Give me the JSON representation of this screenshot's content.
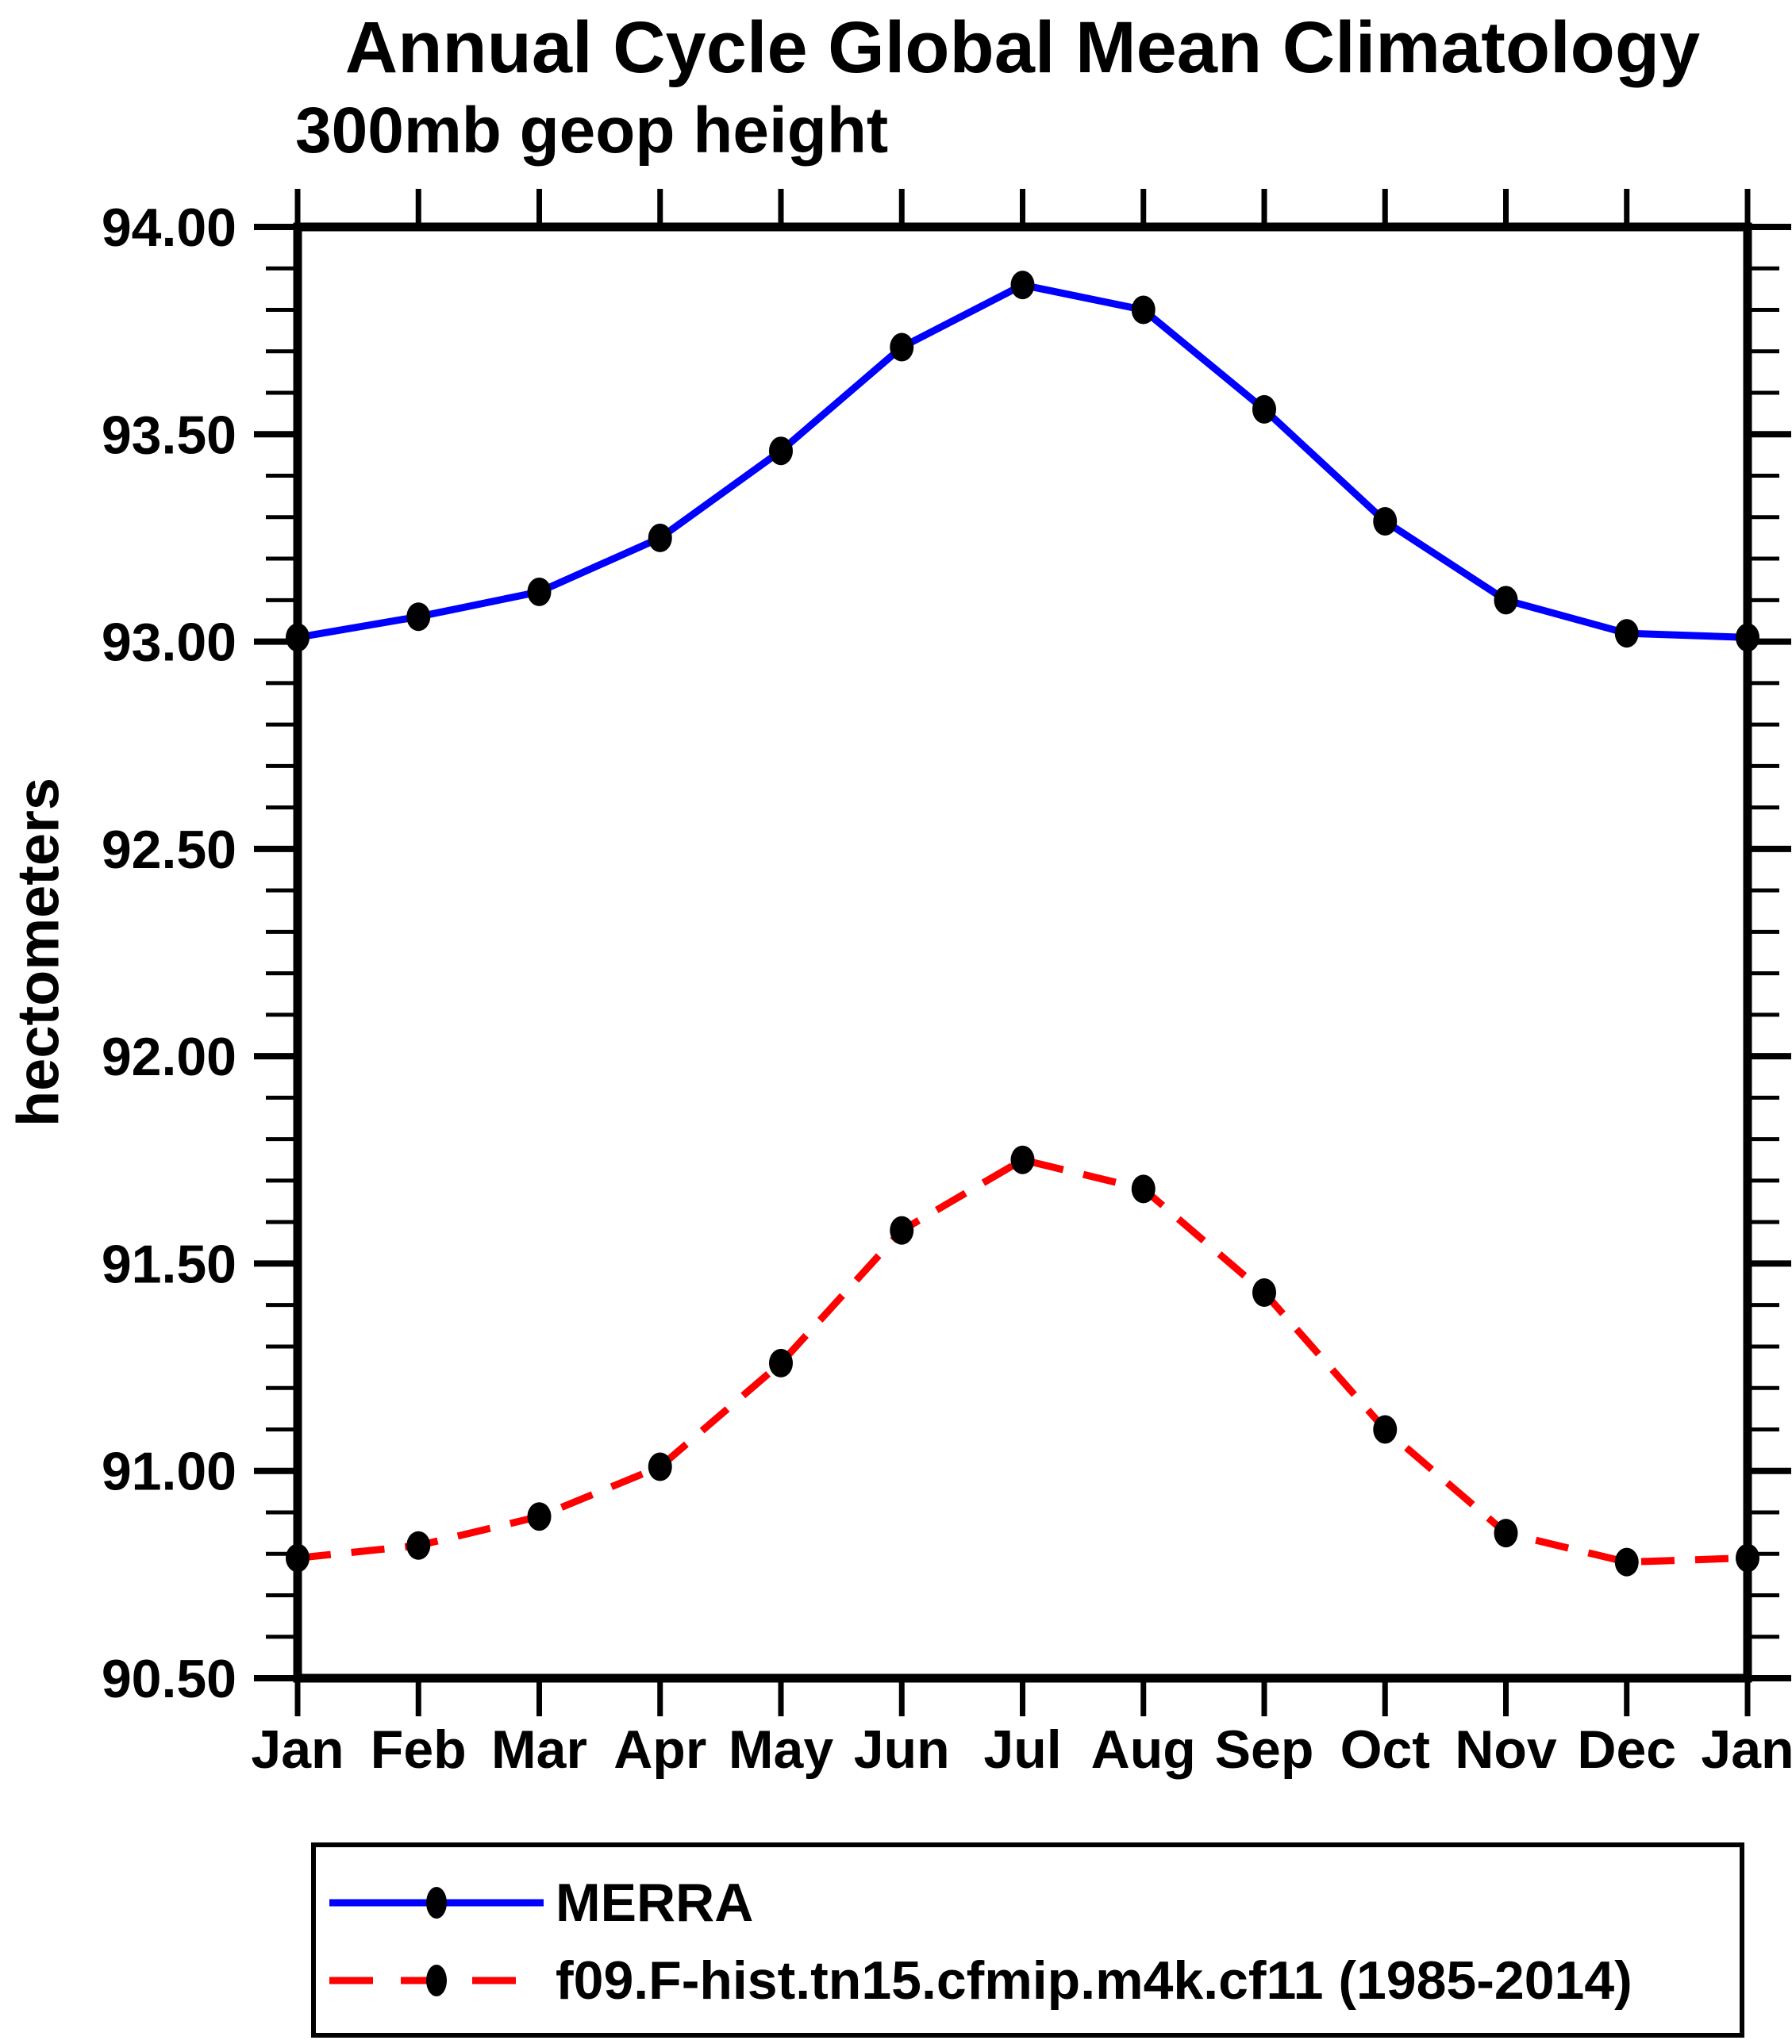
{
  "figure": {
    "title": "Annual Cycle Global Mean Climatology",
    "subtitle": "300mb geop height",
    "ylabel": "hectometers"
  },
  "colors": {
    "merra_line": "#0000ff",
    "model_line": "#ff0000",
    "axis": "#000000",
    "marker_fill": "#000000",
    "background": "#ffffff"
  },
  "legend": {
    "position": "bottom",
    "entries": [
      {
        "label": "MERRA",
        "series_index": 0
      },
      {
        "label": "f09.F-hist.tn15.cfmip.m4k.cf11 (1985-2014)",
        "series_index": 1
      }
    ]
  },
  "chart_data": {
    "type": "line",
    "title": "Annual Cycle Global Mean Climatology",
    "subtitle": "300mb geop height",
    "ylabel": "hectometers",
    "xlabel": "",
    "categories": [
      "Jan",
      "Feb",
      "Mar",
      "Apr",
      "May",
      "Jun",
      "Jul",
      "Aug",
      "Sep",
      "Oct",
      "Nov",
      "Dec",
      "Jan"
    ],
    "ylim": [
      90.5,
      94.0
    ],
    "ytick_major_interval": 0.5,
    "ytick_minor_interval": 0.1,
    "ytick_values": [
      94.0,
      93.5,
      93.0,
      92.5,
      92.0,
      91.5,
      91.0,
      90.5
    ],
    "ytick_labels": [
      "94.00",
      "93.50",
      "93.00",
      "92.50",
      "92.00",
      "91.50",
      "91.00",
      "90.50"
    ],
    "grid": false,
    "legend_position": "bottom",
    "series": [
      {
        "name": "MERRA",
        "color": "#0000ff",
        "line_style": "solid",
        "marker": "filled-ellipse",
        "values": [
          93.01,
          93.06,
          93.12,
          93.25,
          93.46,
          93.71,
          93.86,
          93.8,
          93.56,
          93.29,
          93.1,
          93.02,
          93.01
        ]
      },
      {
        "name": "f09.F-hist.tn15.cfmip.m4k.cf11 (1985-2014)",
        "color": "#ff0000",
        "line_style": "dashed",
        "marker": "filled-ellipse",
        "values": [
          90.79,
          90.82,
          90.89,
          91.01,
          91.26,
          91.58,
          91.75,
          91.68,
          91.43,
          91.1,
          90.85,
          90.78,
          90.79
        ]
      }
    ]
  }
}
